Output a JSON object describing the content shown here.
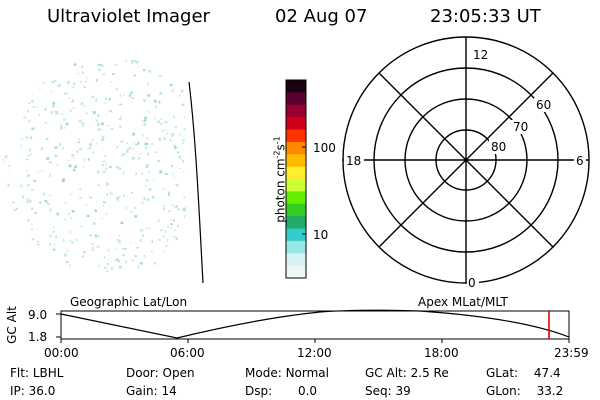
{
  "header": {
    "title": "Ultraviolet Imager",
    "date": "02 Aug 07",
    "time": "23:05:33 UT"
  },
  "colorbar": {
    "axis_label": "photon cm",
    "sup1": "-2",
    "mid": "s",
    "sup2": "-1",
    "tick_100": "100",
    "tick_10": "10",
    "colors": [
      "#1a0010",
      "#5a0030",
      "#9a0030",
      "#d0001a",
      "#ff3300",
      "#ff8800",
      "#ffbb00",
      "#ffee30",
      "#ccff33",
      "#66ee00",
      "#33cc22",
      "#22aa66",
      "#33cccc",
      "#99e8e8",
      "#d6f2f2",
      "#eef8f8"
    ]
  },
  "polar": {
    "mlt_12": "12",
    "mlt_18": "18",
    "mlt_6": "6",
    "mlt_0": "0",
    "lat_60": "60",
    "lat_70": "70",
    "lat_80": "80"
  },
  "timeline": {
    "left_label": "Geographic Lat/Lon",
    "right_label": "Apex  MLat/MLT",
    "yaxis_label": "GC Alt",
    "y_top": "9.0",
    "y_bottom": "1.8",
    "ticks": [
      "00:00",
      "06:00",
      "12:00",
      "18:00",
      "23:59"
    ],
    "marker_color": "#dd0000"
  },
  "status": {
    "row1": [
      {
        "k": "Flt:",
        "v": "LBHL"
      },
      {
        "k": "Door:",
        "v": "Open"
      },
      {
        "k": "Mode:",
        "v": "Normal"
      },
      {
        "k": "GC Alt:",
        "v": "2.5 Re"
      },
      {
        "k": "GLat:",
        "v": "47.4"
      }
    ],
    "row2": [
      {
        "k": "IP:",
        "v": "36.0"
      },
      {
        "k": "Gain:",
        "v": "14"
      },
      {
        "k": "Dsp:",
        "v": "0.0"
      },
      {
        "k": "Seq:",
        "v": "39"
      },
      {
        "k": "GLon:",
        "v": "33.2"
      }
    ]
  }
}
